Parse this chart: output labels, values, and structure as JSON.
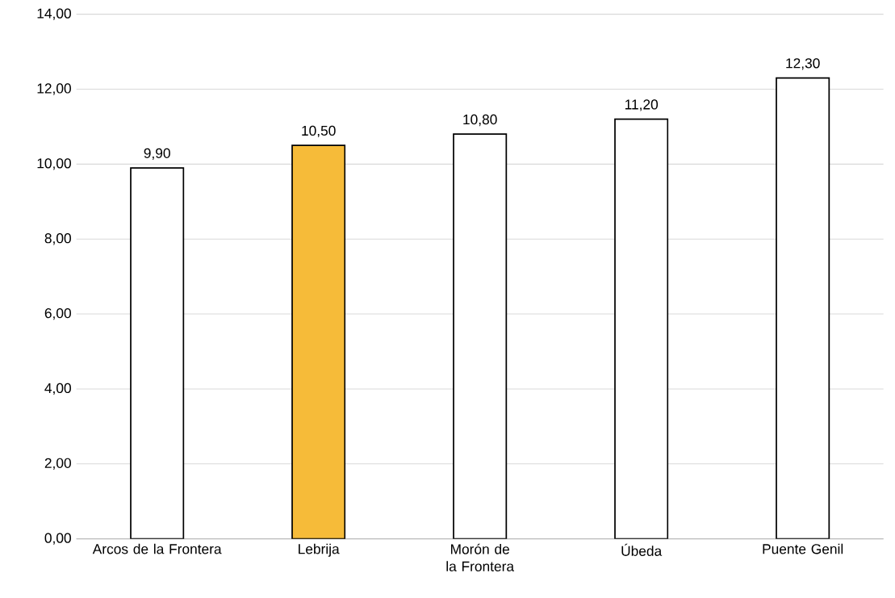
{
  "chart_data": {
    "type": "bar",
    "categories": [
      "Arcos de la Frontera",
      "Lebrija",
      "Morón de la Frontera",
      "Úbeda",
      "Puente Genil"
    ],
    "values": [
      9.9,
      10.5,
      10.8,
      11.2,
      12.3
    ],
    "colors": [
      "#ffffff",
      "#f6bb39",
      "#ffffff",
      "#ffffff",
      "#ffffff"
    ],
    "value_labels": [
      "9,90",
      "10,50",
      "10,80",
      "11,20",
      "12,30"
    ],
    "ylim": [
      0,
      14
    ],
    "yticks": [
      {
        "value": 0,
        "label": "0,00"
      },
      {
        "value": 2,
        "label": "2,00"
      },
      {
        "value": 4,
        "label": "4,00"
      },
      {
        "value": 6,
        "label": "6,00"
      },
      {
        "value": 8,
        "label": "8,00"
      },
      {
        "value": 10,
        "label": "10,00"
      },
      {
        "value": 12,
        "label": "12,00"
      },
      {
        "value": 14,
        "label": "14,00"
      }
    ],
    "grid": "y"
  }
}
